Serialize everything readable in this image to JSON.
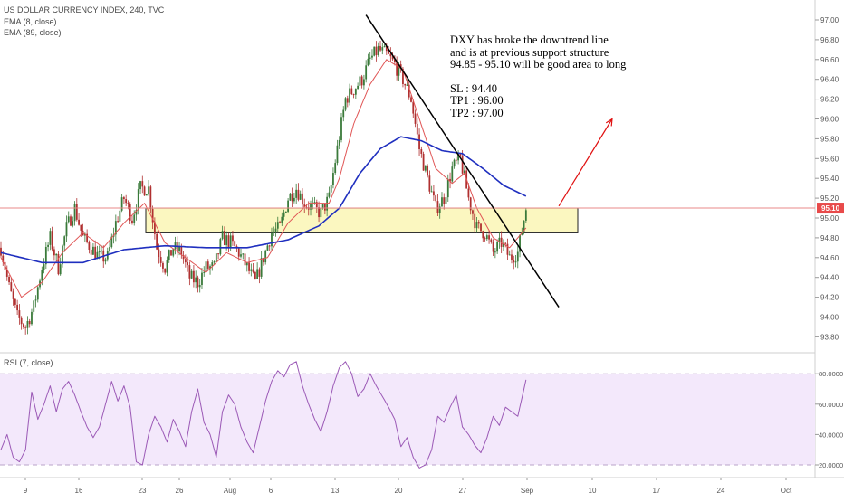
{
  "header": {
    "symbol_line": "US DOLLAR CURRENCY INDEX, 240, TVC",
    "ema_fast_label": "EMA (8, close)",
    "ema_slow_label": "EMA (89, close)",
    "rsi_label": "RSI (7, close)"
  },
  "annotation": {
    "line1": "DXY has broke the downtrend line",
    "line2": "and is at previous support structure",
    "line3": "94.85 - 95.10 will be good area to long",
    "sl": "SL : 94.40",
    "tp1": "TP1 : 96.00",
    "tp2": "TP2 : 97.00"
  },
  "colors": {
    "up_candle": "#3a7a3a",
    "down_candle": "#b03030",
    "ema_fast": "#e05555",
    "ema_slow": "#1f2fbf",
    "rsi_line": "#9b59b6",
    "rsi_band": "#f3e8fb",
    "support_zone": "#fbf7c0",
    "trendline": "#000000",
    "arrow": "#e01010",
    "price_line": "#e88a8a",
    "price_badge": "#e84a4a"
  },
  "chart_data": [
    {
      "type": "candlestick",
      "title": "US DOLLAR CURRENCY INDEX, 240, TVC",
      "x_tick_labels": [
        "9",
        "16",
        "23",
        "26",
        "Aug",
        "6",
        "13",
        "20",
        "27",
        "Sep",
        "10",
        "17",
        "24",
        "Oct"
      ],
      "y_tick_labels": [
        "93.80",
        "94.00",
        "94.20",
        "94.40",
        "94.60",
        "94.80",
        "95.00",
        "95.20",
        "95.40",
        "95.60",
        "95.80",
        "96.00",
        "96.20",
        "96.40",
        "96.60",
        "96.80",
        "97.00"
      ],
      "ylim": [
        93.7,
        97.1
      ],
      "last_price": 95.1,
      "last_price_label": "95.10",
      "support_zone": [
        94.85,
        95.1
      ],
      "close_path": [
        [
          0,
          94.7
        ],
        [
          4,
          94.3
        ],
        [
          8,
          94.0
        ],
        [
          12,
          93.9
        ],
        [
          16,
          94.1
        ],
        [
          20,
          94.5
        ],
        [
          24,
          94.8
        ],
        [
          28,
          94.5
        ],
        [
          32,
          94.9
        ],
        [
          36,
          95.1
        ],
        [
          40,
          94.8
        ],
        [
          44,
          94.7
        ],
        [
          48,
          94.6
        ],
        [
          52,
          94.6
        ],
        [
          56,
          94.95
        ],
        [
          60,
          95.2
        ],
        [
          64,
          95.0
        ],
        [
          68,
          95.3
        ],
        [
          72,
          95.3
        ],
        [
          76,
          94.7
        ],
        [
          80,
          94.5
        ],
        [
          84,
          94.7
        ],
        [
          88,
          94.65
        ],
        [
          92,
          94.4
        ],
        [
          96,
          94.35
        ],
        [
          100,
          94.5
        ],
        [
          104,
          94.5
        ],
        [
          108,
          94.8
        ],
        [
          112,
          94.75
        ],
        [
          116,
          94.65
        ],
        [
          120,
          94.5
        ],
        [
          124,
          94.35
        ],
        [
          128,
          94.6
        ],
        [
          132,
          94.85
        ],
        [
          136,
          94.9
        ],
        [
          140,
          95.2
        ],
        [
          144,
          95.3
        ],
        [
          148,
          95.15
        ],
        [
          152,
          95.1
        ],
        [
          156,
          95.05
        ],
        [
          160,
          95.2
        ],
        [
          164,
          95.7
        ],
        [
          168,
          96.2
        ],
        [
          172,
          96.3
        ],
        [
          176,
          96.4
        ],
        [
          180,
          96.6
        ],
        [
          184,
          96.7
        ],
        [
          188,
          96.65
        ],
        [
          192,
          96.55
        ],
        [
          196,
          96.4
        ],
        [
          200,
          96.2
        ],
        [
          204,
          95.7
        ],
        [
          208,
          95.4
        ],
        [
          212,
          95.1
        ],
        [
          216,
          95.2
        ],
        [
          220,
          95.5
        ],
        [
          224,
          95.6
        ],
        [
          228,
          95.2
        ],
        [
          232,
          94.9
        ],
        [
          236,
          94.85
        ],
        [
          240,
          94.65
        ],
        [
          244,
          94.75
        ],
        [
          248,
          94.6
        ],
        [
          252,
          94.65
        ],
        [
          256,
          95.1
        ]
      ],
      "ema_fast_path": [
        [
          0,
          94.6
        ],
        [
          10,
          94.2
        ],
        [
          20,
          94.35
        ],
        [
          30,
          94.65
        ],
        [
          40,
          94.85
        ],
        [
          50,
          94.7
        ],
        [
          60,
          94.95
        ],
        [
          70,
          95.15
        ],
        [
          80,
          94.75
        ],
        [
          90,
          94.6
        ],
        [
          100,
          94.45
        ],
        [
          110,
          94.65
        ],
        [
          120,
          94.55
        ],
        [
          130,
          94.6
        ],
        [
          140,
          94.95
        ],
        [
          150,
          95.15
        ],
        [
          160,
          95.15
        ],
        [
          165,
          95.4
        ],
        [
          172,
          95.95
        ],
        [
          180,
          96.35
        ],
        [
          188,
          96.6
        ],
        [
          196,
          96.5
        ],
        [
          204,
          96.0
        ],
        [
          212,
          95.5
        ],
        [
          220,
          95.35
        ],
        [
          226,
          95.45
        ],
        [
          232,
          95.1
        ],
        [
          240,
          94.8
        ],
        [
          248,
          94.7
        ],
        [
          256,
          94.9
        ]
      ],
      "ema_slow_path": [
        [
          0,
          94.65
        ],
        [
          20,
          94.55
        ],
        [
          40,
          94.55
        ],
        [
          60,
          94.68
        ],
        [
          80,
          94.72
        ],
        [
          100,
          94.7
        ],
        [
          120,
          94.7
        ],
        [
          140,
          94.78
        ],
        [
          155,
          94.92
        ],
        [
          165,
          95.1
        ],
        [
          175,
          95.45
        ],
        [
          185,
          95.7
        ],
        [
          195,
          95.82
        ],
        [
          205,
          95.78
        ],
        [
          215,
          95.68
        ],
        [
          225,
          95.65
        ],
        [
          235,
          95.5
        ],
        [
          245,
          95.33
        ],
        [
          256,
          95.22
        ]
      ],
      "trendline": [
        [
          178,
          97.05
        ],
        [
          272,
          94.1
        ]
      ],
      "arrow": [
        [
          272,
          95.12
        ],
        [
          298,
          96.0
        ]
      ]
    },
    {
      "type": "line",
      "title": "RSI (7, close)",
      "y_tick_labels": [
        "20.0000",
        "40.0000",
        "60.0000",
        "80.0000"
      ],
      "ylim": [
        15,
        90
      ],
      "bands": [
        20,
        80
      ],
      "rsi_path": [
        [
          0,
          30
        ],
        [
          3,
          40
        ],
        [
          6,
          25
        ],
        [
          9,
          22
        ],
        [
          12,
          30
        ],
        [
          15,
          68
        ],
        [
          18,
          50
        ],
        [
          21,
          60
        ],
        [
          24,
          72
        ],
        [
          27,
          55
        ],
        [
          30,
          70
        ],
        [
          33,
          75
        ],
        [
          36,
          66
        ],
        [
          39,
          55
        ],
        [
          42,
          45
        ],
        [
          45,
          38
        ],
        [
          48,
          45
        ],
        [
          51,
          60
        ],
        [
          54,
          75
        ],
        [
          57,
          62
        ],
        [
          60,
          72
        ],
        [
          63,
          58
        ],
        [
          66,
          22
        ],
        [
          69,
          20
        ],
        [
          72,
          40
        ],
        [
          75,
          52
        ],
        [
          78,
          45
        ],
        [
          81,
          35
        ],
        [
          84,
          50
        ],
        [
          87,
          42
        ],
        [
          90,
          32
        ],
        [
          93,
          55
        ],
        [
          96,
          70
        ],
        [
          99,
          48
        ],
        [
          102,
          40
        ],
        [
          105,
          25
        ],
        [
          108,
          55
        ],
        [
          111,
          66
        ],
        [
          114,
          60
        ],
        [
          117,
          45
        ],
        [
          120,
          35
        ],
        [
          123,
          28
        ],
        [
          126,
          45
        ],
        [
          129,
          62
        ],
        [
          132,
          75
        ],
        [
          135,
          82
        ],
        [
          138,
          78
        ],
        [
          141,
          86
        ],
        [
          144,
          88
        ],
        [
          147,
          72
        ],
        [
          150,
          60
        ],
        [
          153,
          50
        ],
        [
          156,
          42
        ],
        [
          159,
          55
        ],
        [
          162,
          72
        ],
        [
          165,
          84
        ],
        [
          168,
          88
        ],
        [
          171,
          80
        ],
        [
          174,
          65
        ],
        [
          177,
          70
        ],
        [
          180,
          80
        ],
        [
          183,
          72
        ],
        [
          186,
          65
        ],
        [
          189,
          58
        ],
        [
          192,
          50
        ],
        [
          195,
          32
        ],
        [
          198,
          38
        ],
        [
          201,
          25
        ],
        [
          204,
          18
        ],
        [
          207,
          20
        ],
        [
          210,
          30
        ],
        [
          213,
          52
        ],
        [
          216,
          48
        ],
        [
          219,
          58
        ],
        [
          222,
          66
        ],
        [
          225,
          45
        ],
        [
          228,
          40
        ],
        [
          231,
          33
        ],
        [
          234,
          28
        ],
        [
          237,
          38
        ],
        [
          240,
          52
        ],
        [
          243,
          46
        ],
        [
          246,
          58
        ],
        [
          249,
          55
        ],
        [
          252,
          52
        ],
        [
          256,
          76
        ]
      ]
    }
  ]
}
